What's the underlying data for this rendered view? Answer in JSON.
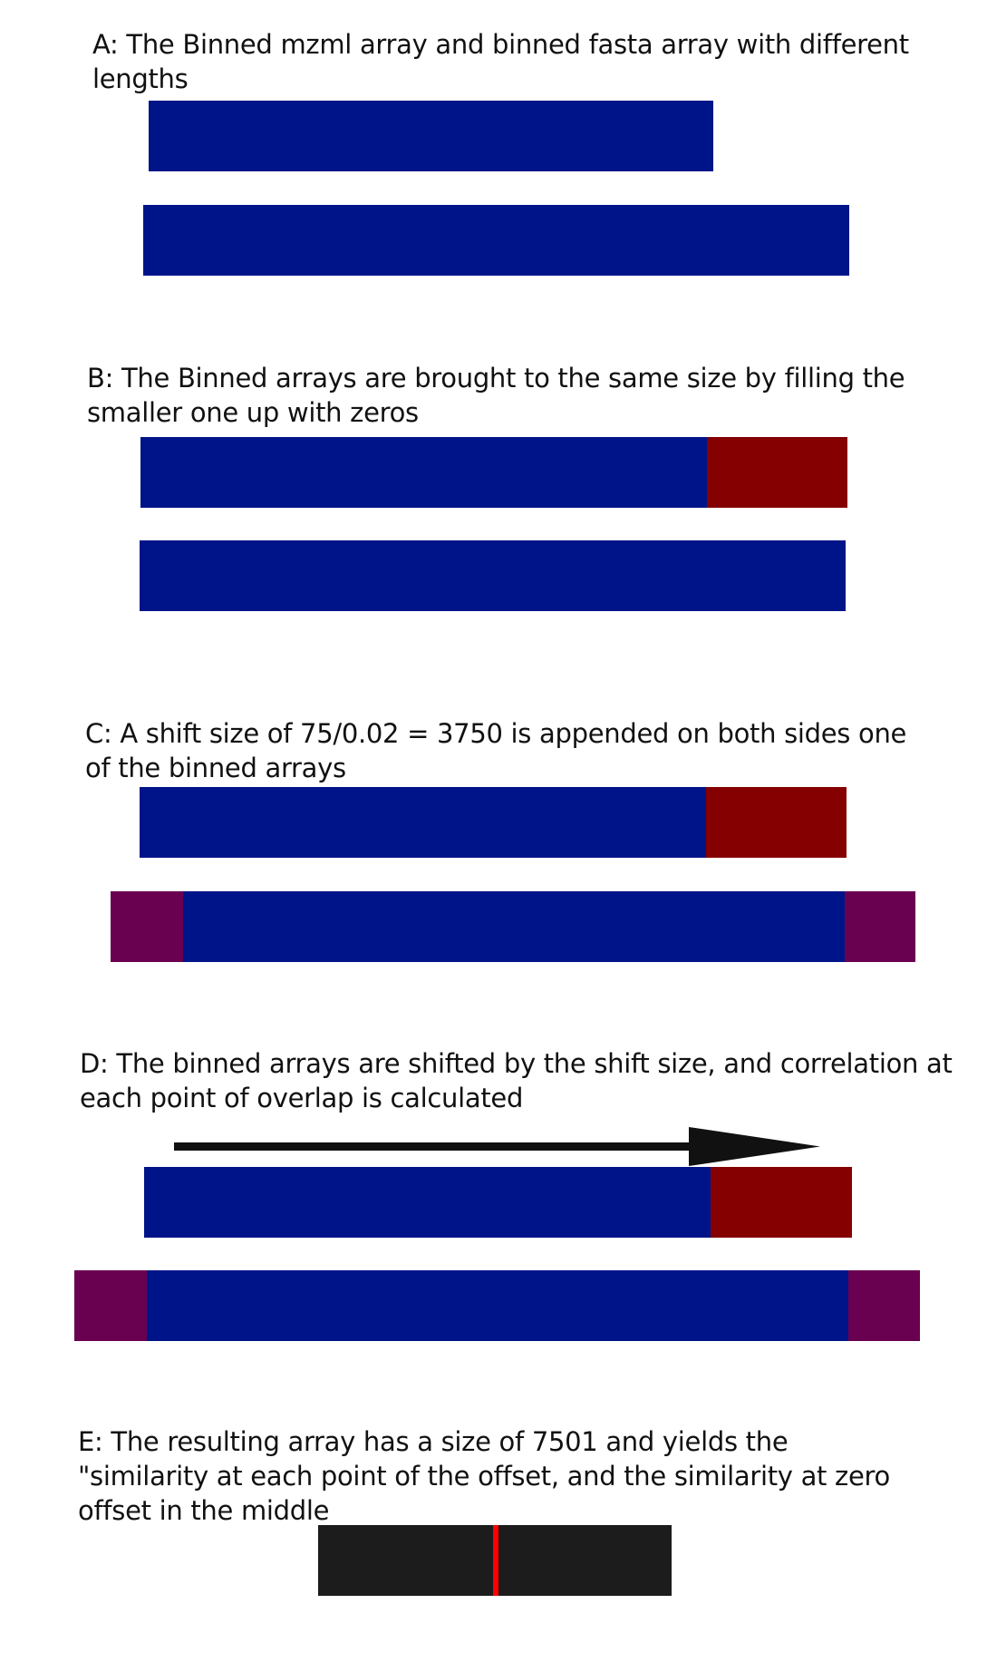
{
  "panels": {
    "a": {
      "caption": "A: The Binned mzml array and binned fasta array with different lengths"
    },
    "b": {
      "caption": "B: The Binned arrays are brought to the same size by filling the smaller one up with zeros"
    },
    "c": {
      "caption": "C: A shift size of 75/0.02 = 3750 is appended on both sides one of the binned arrays"
    },
    "d": {
      "caption": "D: The binned arrays are shifted by the shift size, and correlation at each point of overlap is calculated"
    },
    "e": {
      "caption": "E: The resulting array has a size of 7501 and yields the \"similarity at each point of the offset, and the similarity at zero offset in the middle"
    }
  },
  "colors": {
    "array": "#001489",
    "zero_padding": "#850000",
    "shift_padding": "#6a0050",
    "result_array": "#1c1c1c",
    "zero_offset_marker": "#ff0000",
    "arrow": "#111111"
  }
}
